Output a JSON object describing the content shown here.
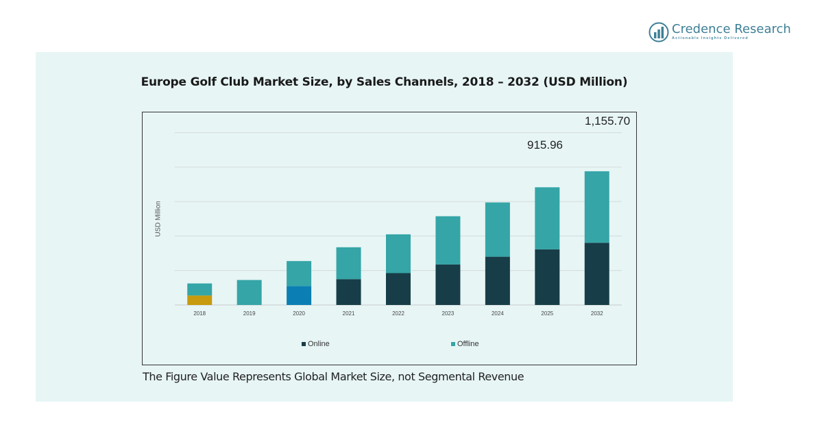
{
  "brand": {
    "name": "Credence Research",
    "tagline": "Actionable Insights Delivered",
    "color": "#3d7f96"
  },
  "chart_data": {
    "type": "bar",
    "stacked": true,
    "title": "Europe Golf Club Market Size, by Sales Channels, 2018 – 2032 (USD Million)",
    "ylabel": "USD Million",
    "xlabel": "",
    "categories": [
      "2018",
      "2019",
      "2020",
      "2021",
      "2022",
      "2023",
      "2024",
      "2025",
      "2032"
    ],
    "series": [
      {
        "name": "Online",
        "color": "#173d48",
        "values": [
          55,
          0,
          110,
          150,
          185,
          235,
          280,
          323,
          361
        ]
      },
      {
        "name": "Offline",
        "color": "#35a5a7",
        "values": [
          70,
          145,
          145,
          185,
          225,
          280,
          315,
          360,
          415
        ]
      }
    ],
    "bar_overrides": {
      "2018": {
        "Online": "#c79a0f"
      },
      "2020": {
        "Online": "#0b7fb3"
      }
    },
    "annotations": [
      {
        "category": "2025",
        "text": "915.96"
      },
      {
        "category": "2032",
        "text": "1,155.70"
      }
    ],
    "ylim": [
      0,
      1050
    ],
    "grid": true,
    "legend_position": "bottom"
  },
  "footnote": "The Figure Value Represents Global Market Size, not Segmental Revenue"
}
